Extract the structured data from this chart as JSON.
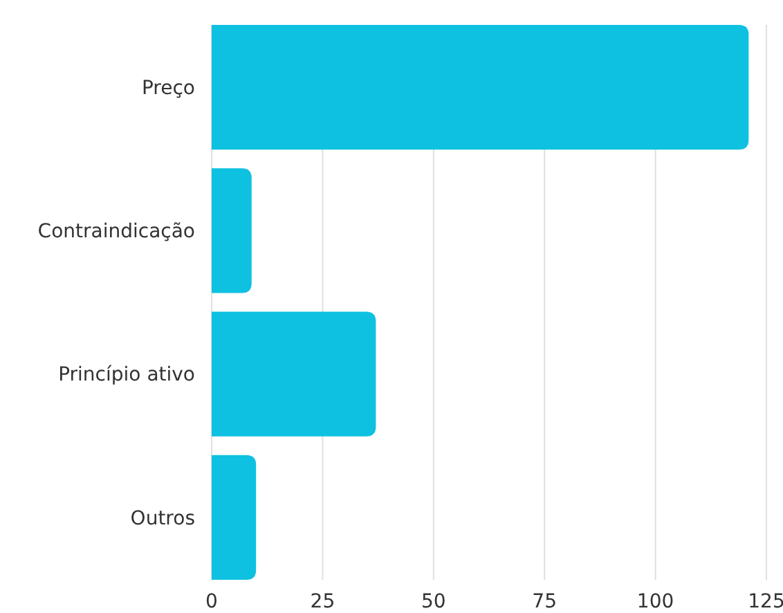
{
  "chart_data": {
    "type": "bar",
    "orientation": "horizontal",
    "categories": [
      "Preço",
      "Contraindicação",
      "Princípio ativo",
      "Outros"
    ],
    "values": [
      121,
      9,
      37,
      10
    ],
    "color": "#0fc1e0",
    "xlim": [
      0,
      125
    ],
    "xticks": [
      0,
      25,
      50,
      75,
      100,
      125
    ],
    "grid": "x"
  }
}
